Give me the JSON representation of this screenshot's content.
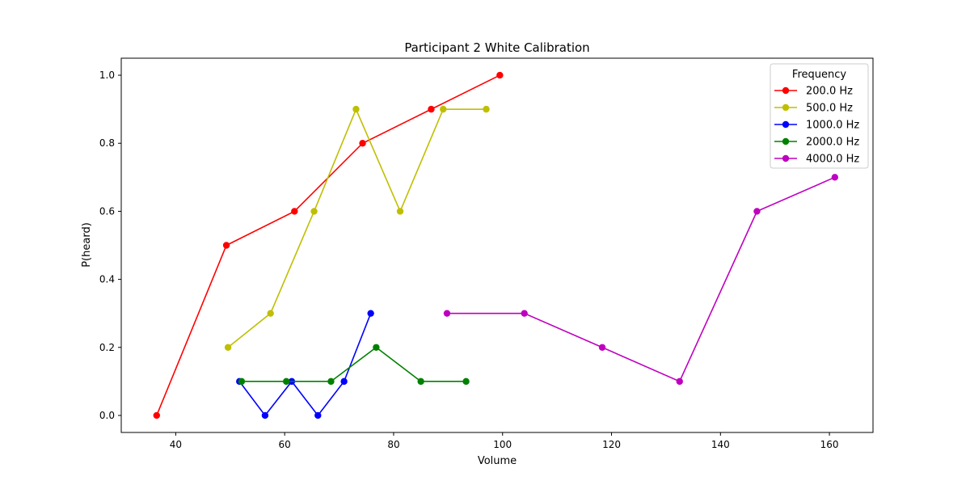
{
  "chart_data": {
    "type": "line",
    "title": "Participant 2 White Calibration",
    "xlabel": "Volume",
    "ylabel": "P(heard)",
    "xlim": [
      30,
      168
    ],
    "ylim": [
      -0.05,
      1.05
    ],
    "xticks": [
      40,
      60,
      80,
      100,
      120,
      140,
      160
    ],
    "yticks": [
      0.0,
      0.2,
      0.4,
      0.6,
      0.8,
      1.0
    ],
    "grid": false,
    "legend": {
      "title": "Frequency",
      "position": "top-right"
    },
    "series": [
      {
        "name": "200.0 Hz",
        "color": "#ff0000",
        "points": [
          [
            36.5,
            0.0
          ],
          [
            49.3,
            0.5
          ],
          [
            61.8,
            0.6
          ],
          [
            74.3,
            0.8
          ],
          [
            86.9,
            0.9
          ],
          [
            99.5,
            1.0
          ]
        ]
      },
      {
        "name": "500.0 Hz",
        "color": "#bfbf00",
        "points": [
          [
            49.6,
            0.2
          ],
          [
            57.4,
            0.3
          ],
          [
            65.4,
            0.6
          ],
          [
            73.1,
            0.9
          ],
          [
            81.2,
            0.6
          ],
          [
            89.1,
            0.9
          ],
          [
            97.0,
            0.9
          ]
        ]
      },
      {
        "name": "1000.0 Hz",
        "color": "#0000ff",
        "points": [
          [
            51.7,
            0.1
          ],
          [
            56.4,
            0.0
          ],
          [
            61.3,
            0.1
          ],
          [
            66.1,
            0.0
          ],
          [
            70.9,
            0.1
          ],
          [
            75.8,
            0.3
          ]
        ]
      },
      {
        "name": "2000.0 Hz",
        "color": "#008000",
        "points": [
          [
            52.1,
            0.1
          ],
          [
            60.3,
            0.1
          ],
          [
            68.5,
            0.1
          ],
          [
            76.8,
            0.2
          ],
          [
            85.0,
            0.1
          ],
          [
            93.3,
            0.1
          ]
        ]
      },
      {
        "name": "4000.0 Hz",
        "color": "#bf00bf",
        "points": [
          [
            89.8,
            0.3
          ],
          [
            104.0,
            0.3
          ],
          [
            118.3,
            0.2
          ],
          [
            132.5,
            0.1
          ],
          [
            146.7,
            0.6
          ],
          [
            161.0,
            0.7
          ]
        ]
      }
    ]
  }
}
